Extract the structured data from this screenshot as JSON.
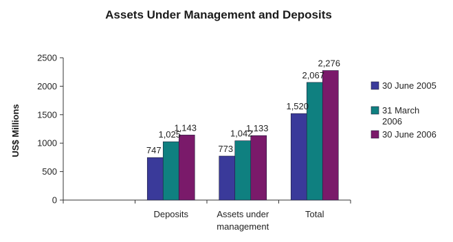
{
  "chart_data": {
    "type": "bar",
    "title": "Assets Under Management and Deposits",
    "ylabel": "US$ Millions",
    "xlabel": "",
    "ylim": [
      0,
      2500
    ],
    "yticks": [
      0,
      500,
      1000,
      1500,
      2000,
      2500
    ],
    "categories": [
      "",
      "Deposits",
      [
        "Assets under",
        "management"
      ],
      "Total"
    ],
    "series": [
      {
        "name": "30 June 2005",
        "color": "#3a3a9a",
        "values": [
          null,
          747,
          773,
          1520
        ],
        "labels": [
          "",
          "747",
          "773",
          "1,520"
        ]
      },
      {
        "name": [
          "31 March",
          "2006"
        ],
        "color": "#0f8080",
        "values": [
          null,
          1025,
          1042,
          2067
        ],
        "labels": [
          "",
          "1,025",
          "1,042",
          "2,067"
        ]
      },
      {
        "name": "30 June 2006",
        "color": "#7a1a6a",
        "values": [
          null,
          1143,
          1133,
          2276
        ],
        "labels": [
          "",
          "1,143",
          "1,133",
          "2,276"
        ]
      }
    ],
    "grid": false,
    "legend": "right"
  }
}
